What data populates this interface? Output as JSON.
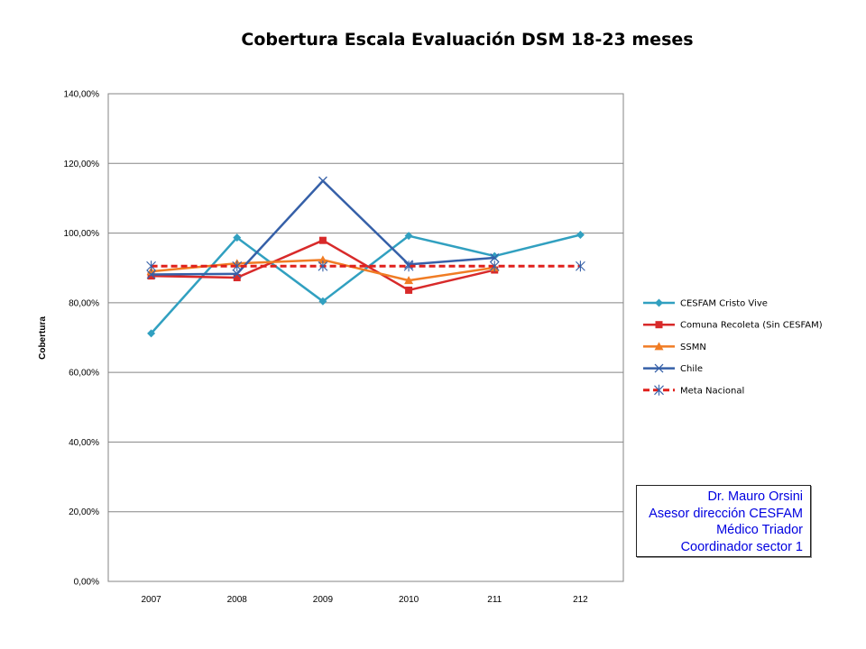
{
  "chart_data": {
    "type": "line",
    "title": "Cobertura Escala Evaluación DSM 18-23 meses",
    "xlabel": "",
    "ylabel": "Cobertura",
    "categories": [
      "2007",
      "2008",
      "2009",
      "2010",
      "211",
      "212"
    ],
    "ylim": [
      0,
      140
    ],
    "yticks": [
      0,
      20,
      40,
      60,
      80,
      100,
      120,
      140
    ],
    "ytick_labels": [
      "0,00%",
      "20,00%",
      "40,00%",
      "60,00%",
      "80,00%",
      "100,00%",
      "120,00%",
      "140,00%"
    ],
    "grid": "horizontal",
    "legend_position": "right",
    "series": [
      {
        "name": "CESFAM Cristo Vive",
        "values": [
          71.2,
          98.7,
          80.4,
          99.2,
          93.4,
          99.5
        ],
        "color": "#31a0c0",
        "marker": "diamond",
        "dash": false
      },
      {
        "name": "Comuna Recoleta (Sin CESFAM)",
        "values": [
          87.7,
          87.2,
          97.9,
          83.6,
          89.4,
          null
        ],
        "color": "#d82a2a",
        "marker": "square",
        "dash": false
      },
      {
        "name": "SSMN",
        "values": [
          89.0,
          91.3,
          92.3,
          86.4,
          90.1,
          null
        ],
        "color": "#f07c24",
        "marker": "triangle",
        "dash": false
      },
      {
        "name": "Chile",
        "values": [
          88.1,
          88.3,
          115.0,
          91.0,
          92.9,
          null
        ],
        "color": "#3660a8",
        "marker": "x",
        "dash": false
      },
      {
        "name": "Meta Nacional",
        "values": [
          90.5,
          90.5,
          90.5,
          90.5,
          90.5,
          90.5
        ],
        "color": "#e0201c",
        "marker": "star",
        "dash": true
      }
    ]
  },
  "signature": {
    "lines": [
      "Dr. Mauro Orsini",
      "Asesor dirección CESFAM",
      "Médico Triador",
      "Coordinador sector 1"
    ],
    "color": "#0000e0"
  }
}
